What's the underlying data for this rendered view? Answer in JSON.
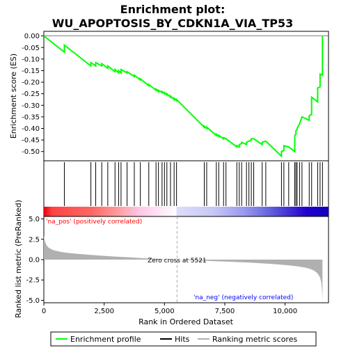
{
  "chart_data": {
    "type": "line",
    "title_line1": "Enrichment plot:",
    "title_line2": "WU_APOPTOSIS_BY_CDKN1A_VIA_TP53",
    "xlabel": "Rank in Ordered Dataset",
    "xlim": [
      0,
      11800
    ],
    "x_ticks": [
      0,
      2500,
      5000,
      7500,
      10000
    ],
    "x_tick_labels": [
      "0",
      "2,500",
      "5,000",
      "7,500",
      "10,000"
    ],
    "top_panel": {
      "ylabel": "Enrichment score (ES)",
      "ylim": [
        -0.54,
        0.02
      ],
      "y_ticks": [
        0.0,
        -0.05,
        -0.1,
        -0.15,
        -0.2,
        -0.25,
        -0.3,
        -0.35,
        -0.4,
        -0.45,
        -0.5
      ],
      "y_tick_labels": [
        "0.00",
        "-0.05",
        "-0.10",
        "-0.15",
        "-0.20",
        "-0.25",
        "-0.30",
        "-0.35",
        "-0.40",
        "-0.45",
        "-0.50"
      ],
      "series": {
        "name": "Enrichment profile",
        "color": "#00ff00",
        "x": [
          0,
          850,
          850,
          1950,
          1950,
          2150,
          2150,
          2400,
          2400,
          2650,
          2650,
          2950,
          2950,
          3100,
          3100,
          3200,
          3200,
          3450,
          3450,
          3750,
          3750,
          4000,
          4000,
          4350,
          4350,
          4650,
          4650,
          4750,
          4750,
          4900,
          4900,
          5000,
          5000,
          5100,
          5100,
          5250,
          5250,
          5400,
          5400,
          5500,
          5500,
          6650,
          6650,
          6750,
          6750,
          7150,
          7150,
          7250,
          7250,
          7450,
          7450,
          7550,
          7550,
          8000,
          8000,
          8100,
          8100,
          8200,
          8200,
          8400,
          8400,
          8500,
          8500,
          8600,
          8600,
          8700,
          8700,
          9050,
          9050,
          9200,
          9200,
          9850,
          9850,
          9950,
          9950,
          10150,
          10150,
          10400,
          10400,
          10450,
          10450,
          10500,
          10500,
          10600,
          10600,
          10700,
          10700,
          11000,
          11000,
          11100,
          11100,
          11350,
          11350,
          11450,
          11450,
          11550,
          11550
        ],
        "y": [
          0.0,
          -0.07,
          -0.04,
          -0.13,
          -0.115,
          -0.13,
          -0.115,
          -0.13,
          -0.12,
          -0.14,
          -0.13,
          -0.155,
          -0.145,
          -0.16,
          -0.15,
          -0.16,
          -0.145,
          -0.16,
          -0.155,
          -0.175,
          -0.17,
          -0.19,
          -0.185,
          -0.215,
          -0.21,
          -0.235,
          -0.23,
          -0.24,
          -0.235,
          -0.245,
          -0.24,
          -0.25,
          -0.245,
          -0.255,
          -0.25,
          -0.265,
          -0.26,
          -0.275,
          -0.27,
          -0.28,
          -0.275,
          -0.395,
          -0.39,
          -0.4,
          -0.395,
          -0.43,
          -0.425,
          -0.435,
          -0.43,
          -0.445,
          -0.44,
          -0.445,
          -0.445,
          -0.48,
          -0.475,
          -0.48,
          -0.47,
          -0.465,
          -0.46,
          -0.47,
          -0.46,
          -0.455,
          -0.455,
          -0.45,
          -0.445,
          -0.445,
          -0.445,
          -0.47,
          -0.46,
          -0.455,
          -0.455,
          -0.52,
          -0.5,
          -0.495,
          -0.475,
          -0.48,
          -0.48,
          -0.5,
          -0.43,
          -0.425,
          -0.41,
          -0.405,
          -0.4,
          -0.38,
          -0.38,
          -0.35,
          -0.35,
          -0.365,
          -0.345,
          -0.34,
          -0.265,
          -0.285,
          -0.225,
          -0.22,
          -0.165,
          -0.17,
          0.0
        ]
      }
    },
    "hits": {
      "name": "Hits",
      "color": "#000000",
      "x": [
        850,
        1950,
        2150,
        2400,
        2650,
        2950,
        3100,
        3200,
        3450,
        3750,
        4000,
        4350,
        4650,
        4750,
        4900,
        5000,
        5100,
        5250,
        5400,
        5500,
        6650,
        6750,
        7150,
        7250,
        7450,
        7550,
        8000,
        8100,
        8200,
        8400,
        8500,
        8600,
        8700,
        9050,
        9200,
        9850,
        9950,
        10150,
        10400,
        10450,
        10500,
        10600,
        10700,
        11000,
        11100,
        11350,
        11450,
        11550
      ]
    },
    "color_bar": {
      "stops": [
        {
          "x": 0,
          "color": "#e8000e"
        },
        {
          "x": 350,
          "color": "#ff4444"
        },
        {
          "x": 2000,
          "color": "#ff6666"
        },
        {
          "x": 3000,
          "color": "#ff9999"
        },
        {
          "x": 4000,
          "color": "#ffc8e8"
        },
        {
          "x": 5500,
          "color": "#ffffff"
        },
        {
          "x": 5500,
          "color": "#ddddfa"
        },
        {
          "x": 7000,
          "color": "#c8c8f5"
        },
        {
          "x": 8300,
          "color": "#9999ee"
        },
        {
          "x": 9300,
          "color": "#6666dd"
        },
        {
          "x": 10900,
          "color": "#2200cc"
        },
        {
          "x": 11800,
          "color": "#1100bb"
        }
      ]
    },
    "bottom_panel": {
      "ylabel": "Ranked list metric (PreRanked)",
      "ylim": [
        -5.3,
        5.3
      ],
      "y_ticks": [
        5.0,
        2.5,
        0.0,
        -2.5,
        -5.0
      ],
      "y_tick_labels": [
        "5.0",
        "2.5",
        "0.0",
        "-2.5",
        "-5.0"
      ],
      "series": {
        "name": "Ranking metric scores",
        "color": "#b0b0b0",
        "x": [
          0,
          30,
          100,
          200,
          400,
          700,
          1000,
          1500,
          2000,
          2500,
          3000,
          3500,
          4000,
          4500,
          5000,
          5521,
          6000,
          6500,
          7000,
          7500,
          8000,
          8500,
          9000,
          9500,
          10000,
          10500,
          10800,
          11000,
          11200,
          11350,
          11450,
          11500,
          11530,
          11550
        ],
        "y": [
          3.0,
          2.4,
          1.8,
          1.45,
          1.15,
          0.95,
          0.82,
          0.68,
          0.56,
          0.46,
          0.37,
          0.29,
          0.2,
          0.12,
          0.05,
          0.0,
          -0.06,
          -0.12,
          -0.18,
          -0.24,
          -0.3,
          -0.37,
          -0.45,
          -0.55,
          -0.66,
          -0.82,
          -0.97,
          -1.1,
          -1.35,
          -1.7,
          -2.2,
          -2.8,
          -3.7,
          -5.0
        ]
      },
      "zero_cross_x": 5521,
      "zero_cross_label": "Zero cross at 5521",
      "pos_label": "'na_pos' (positively correlated)",
      "neg_label": "'na_neg' (negatively correlated)",
      "pos_color": "#ff0000",
      "neg_color": "#0000ff"
    },
    "legend": {
      "placement": "bottom",
      "items": [
        {
          "label": "Enrichment profile",
          "color": "#00ff00"
        },
        {
          "label": "Hits",
          "color": "#000000"
        },
        {
          "label": "Ranking metric scores",
          "color": "#b0b0b0"
        }
      ]
    }
  }
}
